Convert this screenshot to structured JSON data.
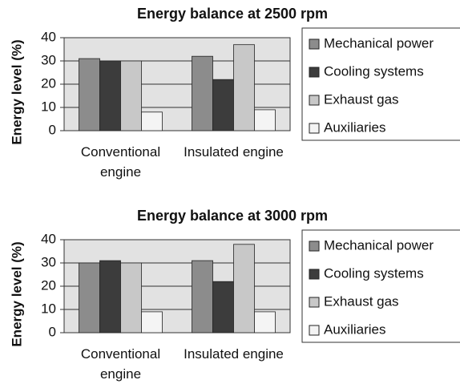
{
  "chart_data": [
    {
      "type": "bar",
      "title": "Energy balance at 2500 rpm",
      "y_label": "Energy level (%)",
      "categories": [
        "Conventional engine",
        "Insulated engine"
      ],
      "series": [
        {
          "name": "Mechanical power",
          "color": "#8c8c8c",
          "values": [
            31,
            32
          ]
        },
        {
          "name": "Cooling systems",
          "color": "#3c3c3c",
          "values": [
            30,
            22
          ]
        },
        {
          "name": "Exhaust gas",
          "color": "#c8c8c8",
          "values": [
            30,
            37
          ]
        },
        {
          "name": "Auxiliaries",
          "color": "#f4f4f4",
          "values": [
            8,
            9
          ]
        }
      ],
      "ylim": [
        0,
        40
      ],
      "yticks": [
        0,
        10,
        20,
        30,
        40
      ],
      "grid": true,
      "legend": "right"
    },
    {
      "type": "bar",
      "title": "Energy balance at 3000 rpm",
      "y_label": "Energy level (%)",
      "categories": [
        "Conventional engine",
        "Insulated engine"
      ],
      "series": [
        {
          "name": "Mechanical power",
          "color": "#8c8c8c",
          "values": [
            30,
            31
          ]
        },
        {
          "name": "Cooling systems",
          "color": "#3c3c3c",
          "values": [
            31,
            22
          ]
        },
        {
          "name": "Exhaust gas",
          "color": "#c8c8c8",
          "values": [
            30,
            38
          ]
        },
        {
          "name": "Auxiliaries",
          "color": "#f4f4f4",
          "values": [
            9,
            9
          ]
        }
      ],
      "ylim": [
        0,
        40
      ],
      "yticks": [
        0,
        10,
        20,
        30,
        40
      ],
      "grid": true,
      "legend": "right"
    }
  ]
}
